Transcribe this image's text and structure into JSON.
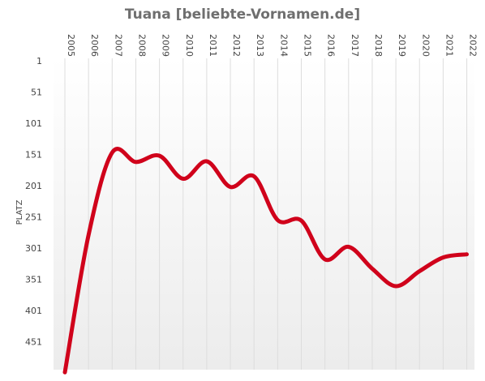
{
  "chart_data": {
    "type": "line",
    "title": "Tuana [beliebte-Vornamen.de]",
    "xlabel": "",
    "ylabel": "PLATZ",
    "x": [
      "2005",
      "2006",
      "2007",
      "2008",
      "2009",
      "2010",
      "2011",
      "2012",
      "2013",
      "2014",
      "2015",
      "2016",
      "2017",
      "2018",
      "2019",
      "2020",
      "2021",
      "2022"
    ],
    "y_ticks": [
      1,
      51,
      101,
      151,
      201,
      251,
      301,
      351,
      401,
      451
    ],
    "y_tick_labels": [
      "1",
      "51",
      "101",
      "151",
      "201",
      "251",
      "301",
      "351",
      "401",
      "451"
    ],
    "ylim": [
      1,
      500
    ],
    "y_inverted": true,
    "grid": "vertical",
    "series": [
      {
        "color": "#d0021b",
        "values": [
          500,
          280,
          148,
          163,
          153,
          190,
          162,
          203,
          186,
          256,
          257,
          319,
          299,
          334,
          362,
          338,
          316,
          311
        ]
      }
    ]
  }
}
